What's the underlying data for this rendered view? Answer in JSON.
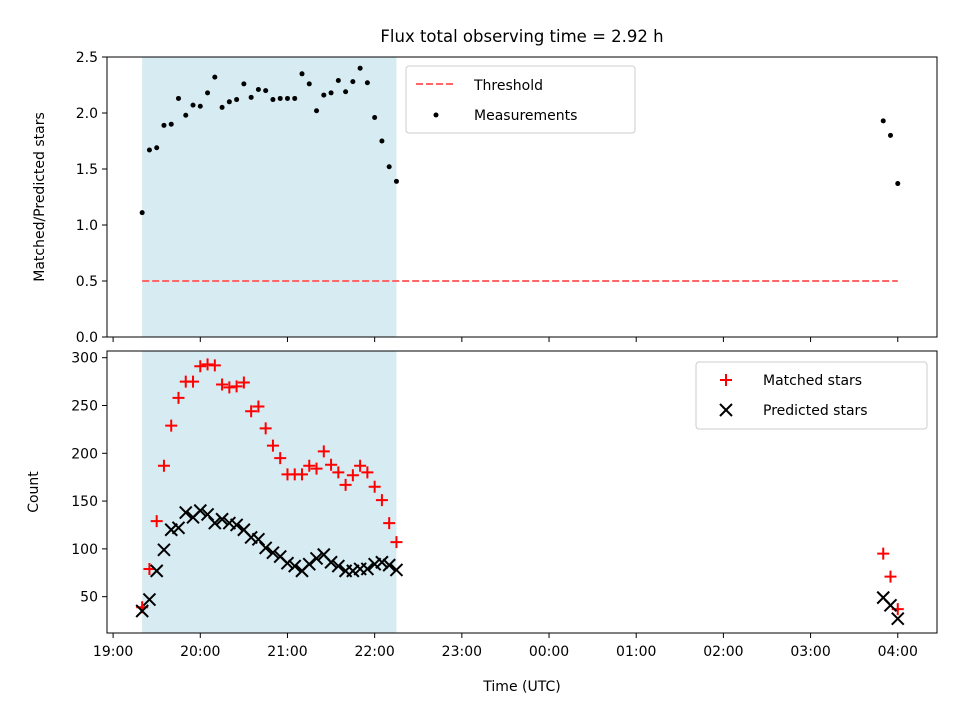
{
  "title": "Flux total observing time = 2.92 h",
  "colors": {
    "shade": "#add8e6",
    "threshold": "#ff6666",
    "matched": "#ff0000",
    "predicted": "#000000",
    "measurement": "#000000"
  },
  "chart_data": [
    {
      "type": "scatter",
      "ylabel": "Matched/Predicted stars",
      "xlim": [
        18.93,
        4.45
      ],
      "ylim": [
        0,
        2.5
      ],
      "yticks": [
        "0.0",
        "0.5",
        "1.0",
        "1.5",
        "2.0",
        "2.5"
      ],
      "legend": {
        "placement": "top-center",
        "entries": [
          "Threshold",
          "Measurements"
        ]
      },
      "shaded_span": [
        "19:20",
        "22:15"
      ],
      "threshold": {
        "name": "Threshold",
        "value": 0.5,
        "x": [
          "19:20",
          "04:00"
        ]
      },
      "series": [
        {
          "name": "Measurements",
          "x": [
            "19:20",
            "19:25",
            "19:30",
            "19:35",
            "19:40",
            "19:45",
            "19:50",
            "19:55",
            "20:00",
            "20:05",
            "20:10",
            "20:15",
            "20:20",
            "20:25",
            "20:30",
            "20:35",
            "20:40",
            "20:45",
            "20:50",
            "20:55",
            "21:00",
            "21:05",
            "21:10",
            "21:15",
            "21:20",
            "21:25",
            "21:30",
            "21:35",
            "21:40",
            "21:45",
            "21:50",
            "21:55",
            "22:00",
            "22:05",
            "22:10",
            "22:15",
            "03:50",
            "03:55",
            "04:00"
          ],
          "y": [
            1.11,
            1.67,
            1.69,
            1.89,
            1.9,
            2.13,
            1.98,
            2.07,
            2.06,
            2.18,
            2.32,
            2.05,
            2.1,
            2.12,
            2.26,
            2.14,
            2.21,
            2.2,
            2.12,
            2.13,
            2.13,
            2.13,
            2.35,
            2.26,
            2.02,
            2.16,
            2.18,
            2.29,
            2.19,
            2.28,
            2.4,
            2.27,
            1.96,
            1.75,
            1.52,
            1.39,
            1.93,
            1.8,
            1.37
          ]
        }
      ]
    },
    {
      "type": "scatter",
      "ylabel": "Count",
      "xlabel": "Time (UTC)",
      "xlim": [
        18.93,
        4.45
      ],
      "ylim": [
        12,
        307
      ],
      "yticks": [
        "50",
        "100",
        "150",
        "200",
        "250",
        "300"
      ],
      "xticks": [
        "19:00",
        "20:00",
        "21:00",
        "22:00",
        "23:00",
        "00:00",
        "01:00",
        "02:00",
        "03:00",
        "04:00"
      ],
      "legend": {
        "placement": "top-right",
        "entries": [
          "Matched stars",
          "Predicted stars"
        ]
      },
      "shaded_span": [
        "19:20",
        "22:15"
      ],
      "series": [
        {
          "name": "Matched stars",
          "x": [
            "19:20",
            "19:25",
            "19:30",
            "19:35",
            "19:40",
            "19:45",
            "19:50",
            "19:55",
            "20:00",
            "20:05",
            "20:10",
            "20:15",
            "20:20",
            "20:25",
            "20:30",
            "20:35",
            "20:40",
            "20:45",
            "20:50",
            "20:55",
            "21:00",
            "21:05",
            "21:10",
            "21:15",
            "21:20",
            "21:25",
            "21:30",
            "21:35",
            "21:40",
            "21:45",
            "21:50",
            "21:55",
            "22:00",
            "22:05",
            "22:10",
            "22:15",
            "03:50",
            "03:55",
            "04:00"
          ],
          "y": [
            39,
            79,
            129,
            187,
            229,
            258,
            275,
            275,
            291,
            293,
            292,
            272,
            269,
            270,
            274,
            244,
            249,
            226,
            208,
            195,
            178,
            178,
            178,
            187,
            184,
            202,
            188,
            180,
            167,
            177,
            187,
            180,
            165,
            151,
            127,
            107,
            95,
            71,
            37
          ]
        },
        {
          "name": "Predicted stars",
          "x": [
            "19:20",
            "19:25",
            "19:30",
            "19:35",
            "19:40",
            "19:45",
            "19:50",
            "19:55",
            "20:00",
            "20:05",
            "20:10",
            "20:15",
            "20:20",
            "20:25",
            "20:30",
            "20:35",
            "20:40",
            "20:45",
            "20:50",
            "20:55",
            "21:00",
            "21:05",
            "21:10",
            "21:15",
            "21:20",
            "21:25",
            "21:30",
            "21:35",
            "21:40",
            "21:45",
            "21:50",
            "21:55",
            "22:00",
            "22:05",
            "22:10",
            "22:15",
            "03:50",
            "03:55",
            "04:00"
          ],
          "y": [
            35,
            47,
            77,
            99,
            120,
            122,
            138,
            133,
            140,
            136,
            127,
            131,
            127,
            125,
            120,
            112,
            110,
            101,
            96,
            92,
            85,
            82,
            77,
            84,
            90,
            94,
            86,
            82,
            77,
            77,
            79,
            79,
            84,
            86,
            83,
            78,
            49,
            41,
            27
          ]
        }
      ]
    }
  ]
}
